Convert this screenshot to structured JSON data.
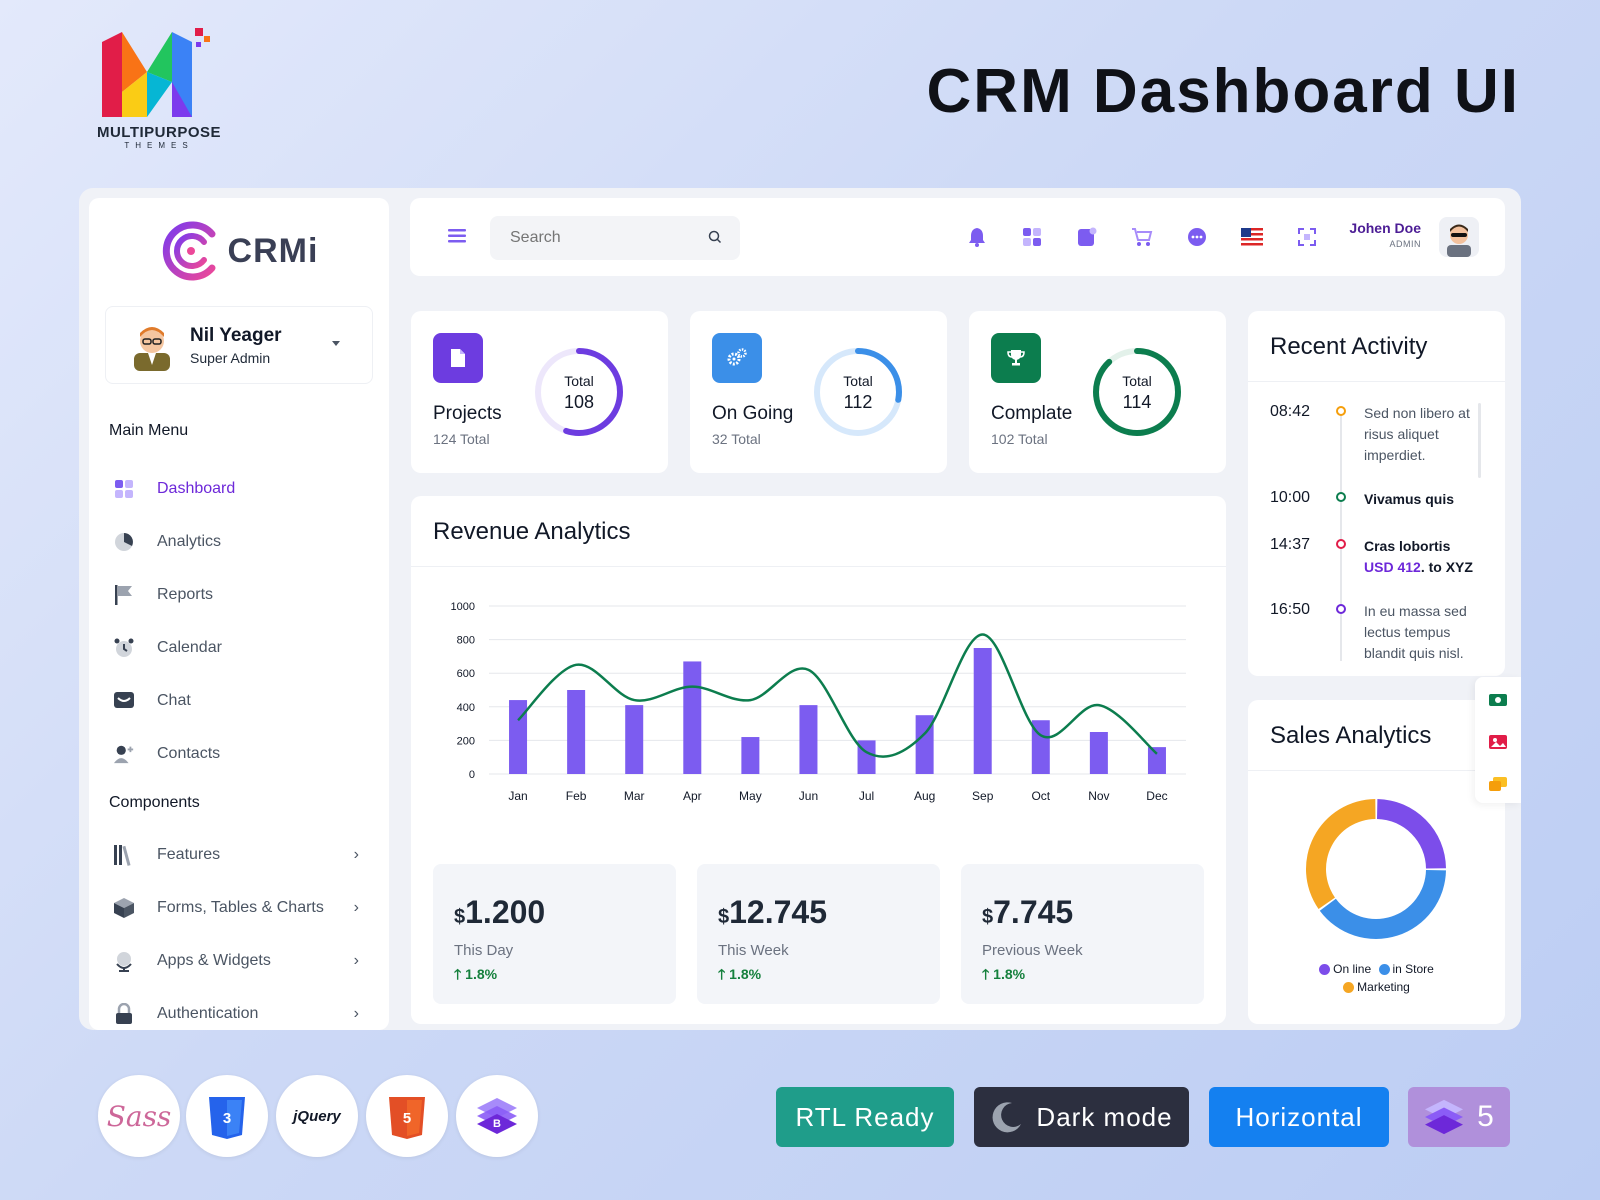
{
  "banner": {
    "brand_name": "MULTIPURPOSE",
    "brand_sub": "THEMES",
    "title": "CRM Dashboard UI"
  },
  "sidebar": {
    "logo_text": "CRMi",
    "profile": {
      "name": "Nil Yeager",
      "role": "Super Admin"
    },
    "main_menu_title": "Main Menu",
    "main_items": [
      {
        "label": "Dashboard",
        "icon": "grid-icon"
      },
      {
        "label": "Analytics",
        "icon": "pie-icon"
      },
      {
        "label": "Reports",
        "icon": "flag-icon"
      },
      {
        "label": "Calendar",
        "icon": "alarm-icon"
      },
      {
        "label": "Chat",
        "icon": "chat-icon"
      },
      {
        "label": "Contacts",
        "icon": "contacts-icon"
      }
    ],
    "components_title": "Components",
    "component_items": [
      {
        "label": "Features",
        "icon": "books-icon"
      },
      {
        "label": "Forms, Tables & Charts",
        "icon": "cube-icon"
      },
      {
        "label": "Apps & Widgets",
        "icon": "globe-icon"
      },
      {
        "label": "Authentication",
        "icon": "lock-icon"
      }
    ],
    "chevron": "›"
  },
  "topbar": {
    "search_placeholder": "Search",
    "user_name": "Johen Doe",
    "user_role": "ADMIN",
    "icons": [
      "bell-icon",
      "apps-icon",
      "note-icon",
      "cart-icon",
      "chat-bubble-icon",
      "us-flag-icon",
      "fullscreen-icon"
    ]
  },
  "stats": [
    {
      "label": "Projects",
      "sub": "124 Total",
      "ring_label": "Total",
      "ring_value": "108",
      "progress": 0.55,
      "color": "#6d3ce0",
      "track": "#ede7fb"
    },
    {
      "label": "On Going",
      "sub": "32 Total",
      "ring_label": "Total",
      "ring_value": "112",
      "progress": 0.28,
      "color": "#3b8fe8",
      "track": "#d6e8fb"
    },
    {
      "label": "Complate",
      "sub": "102 Total",
      "ring_label": "Total",
      "ring_value": "114",
      "progress": 0.88,
      "color": "#0c7d4e",
      "track": "#e3f1ea"
    }
  ],
  "revenue": {
    "title": "Revenue Analytics",
    "mini": [
      {
        "currency": "$",
        "amount": "1.200",
        "label": "This Day",
        "change": "1.8%",
        "color": "#1e1b3a"
      },
      {
        "currency": "$",
        "amount": "12.745",
        "label": "This Week",
        "change": "1.8%",
        "color": "#7c3aed"
      },
      {
        "currency": "$",
        "amount": "7.745",
        "label": "Previous Week",
        "change": "1.8%",
        "color": "#0c7d4e"
      }
    ]
  },
  "chart_data": {
    "type": "bar",
    "categories": [
      "Jan",
      "Feb",
      "Mar",
      "Apr",
      "May",
      "Jun",
      "Jul",
      "Aug",
      "Sep",
      "Oct",
      "Nov",
      "Dec"
    ],
    "series": [
      {
        "type": "bar",
        "values": [
          440,
          500,
          410,
          670,
          220,
          410,
          200,
          350,
          750,
          320,
          250,
          160
        ],
        "color": "#7c5cf0"
      },
      {
        "type": "line",
        "values": [
          320,
          650,
          440,
          520,
          440,
          620,
          130,
          240,
          830,
          230,
          410,
          120
        ],
        "color": "#0c7d4e"
      }
    ],
    "yticks": [
      0,
      200,
      400,
      600,
      800,
      1000
    ],
    "ylim": [
      0,
      1000
    ],
    "grid": true
  },
  "activity": {
    "title": "Recent Activity",
    "items": [
      {
        "time": "08:42",
        "text": "Sed non libero at risus aliquet imperdiet.",
        "dot": "#f59e0b",
        "style": "muted"
      },
      {
        "time": "10:00",
        "text": "Vivamus quis",
        "dot": "#0c7d4e",
        "style": "dark"
      },
      {
        "time": "14:37",
        "text": "Cras lobortis",
        "usd": "USD 412",
        "tail": ". to XYZ",
        "dot": "#e11d48",
        "style": "dark"
      },
      {
        "time": "16:50",
        "text": "In eu massa sed lectus tempus blandit quis nisl.",
        "dot": "#6d28d9",
        "style": "muted"
      }
    ]
  },
  "sales": {
    "title": "Sales Analytics",
    "segments": [
      {
        "name": "On line",
        "value": 25,
        "color": "#7c4dea"
      },
      {
        "name": "in Store",
        "value": 40,
        "color": "#3b8fe8"
      },
      {
        "name": "Marketing",
        "value": 35,
        "color": "#f5a623"
      }
    ]
  },
  "badges": {
    "tech": [
      "Sass",
      "CSS3",
      "jQuery",
      "HTML5",
      "Bootstrap"
    ],
    "rtl": "RTL Ready",
    "dark": "Dark mode",
    "horizontal": "Horizontal",
    "bootstrap_version": "5"
  }
}
